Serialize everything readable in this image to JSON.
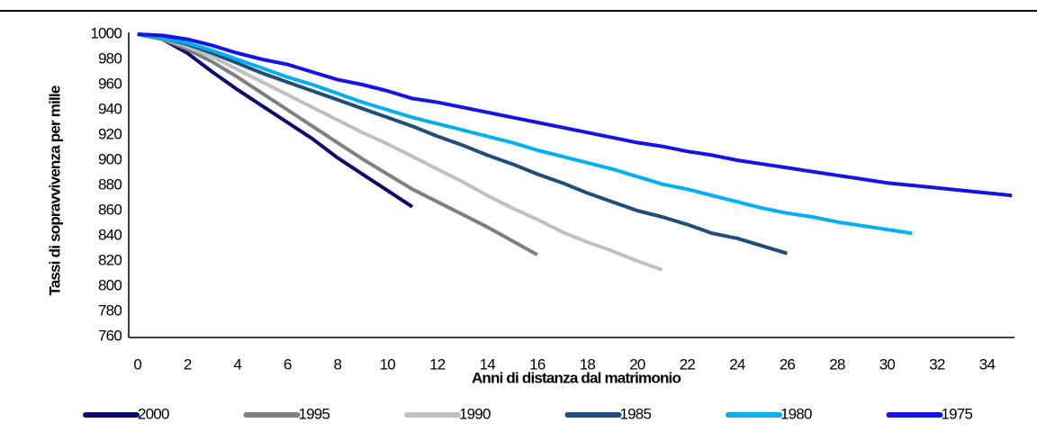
{
  "chart_data": {
    "type": "line",
    "x_label": "Anni di distanza dal matrimonio",
    "y_label": "Tassi di sopravvivenza per mille",
    "x": [
      0,
      1,
      2,
      3,
      4,
      5,
      6,
      7,
      8,
      9,
      10,
      11,
      12,
      13,
      14,
      15,
      16,
      17,
      18,
      19,
      20,
      21,
      22,
      23,
      24,
      25,
      26,
      27,
      28,
      29,
      30,
      31,
      32,
      33,
      34,
      35
    ],
    "xlim": [
      -0.35,
      35.1
    ],
    "xticks": [
      0,
      2,
      4,
      6,
      8,
      10,
      12,
      14,
      16,
      18,
      20,
      22,
      24,
      26,
      28,
      30,
      32,
      34
    ],
    "ylim": [
      760,
      1000
    ],
    "yticks": [
      760,
      780,
      800,
      820,
      840,
      860,
      880,
      900,
      920,
      940,
      960,
      980,
      1000
    ],
    "series": [
      {
        "name": "2000",
        "color": "#0b0b6b",
        "values": [
          1000,
          996,
          985,
          970,
          956,
          943,
          930,
          917,
          902,
          889,
          876,
          863,
          null,
          null,
          null,
          null,
          null,
          null,
          null,
          null,
          null,
          null,
          null,
          null,
          null,
          null,
          null,
          null,
          null,
          null,
          null,
          null,
          null,
          null,
          null,
          null
        ]
      },
      {
        "name": "1995",
        "color": "#7f7f7f",
        "values": [
          1000,
          996,
          988,
          978,
          966,
          953,
          940,
          927,
          914,
          901,
          889,
          877,
          867,
          857,
          847,
          836,
          825,
          null,
          null,
          null,
          null,
          null,
          null,
          null,
          null,
          null,
          null,
          null,
          null,
          null,
          null,
          null,
          null,
          null,
          null,
          null
        ]
      },
      {
        "name": "1990",
        "color": "#c0c0c0",
        "values": [
          1000,
          997,
          990,
          982,
          972,
          962,
          952,
          942,
          932,
          922,
          913,
          903,
          893,
          883,
          872,
          862,
          853,
          843,
          835,
          828,
          820,
          813,
          null,
          null,
          null,
          null,
          null,
          null,
          null,
          null,
          null,
          null,
          null,
          null,
          null,
          null
        ]
      },
      {
        "name": "1985",
        "color": "#1f4e79",
        "values": [
          1000,
          997,
          992,
          985,
          977,
          969,
          962,
          955,
          948,
          941,
          934,
          927,
          919,
          912,
          904,
          897,
          889,
          882,
          874,
          867,
          860,
          855,
          849,
          842,
          838,
          832,
          826,
          null,
          null,
          null,
          null,
          null,
          null,
          null,
          null,
          null
        ]
      },
      {
        "name": "1980",
        "color": "#00b0f0",
        "values": [
          1000,
          997,
          993,
          987,
          980,
          973,
          966,
          960,
          953,
          946,
          940,
          934,
          929,
          924,
          919,
          914,
          908,
          903,
          898,
          893,
          887,
          881,
          877,
          872,
          867,
          862,
          858,
          855,
          851,
          848,
          845,
          842,
          null,
          null,
          null,
          null
        ]
      },
      {
        "name": "1975",
        "color": "#1414e6",
        "values": [
          1000,
          999,
          996,
          991,
          985,
          980,
          976,
          970,
          964,
          960,
          955,
          949,
          946,
          942,
          938,
          934,
          930,
          926,
          922,
          918,
          914,
          911,
          907,
          904,
          900,
          897,
          894,
          891,
          888,
          885,
          882,
          880,
          878,
          876,
          874,
          872
        ]
      }
    ]
  }
}
